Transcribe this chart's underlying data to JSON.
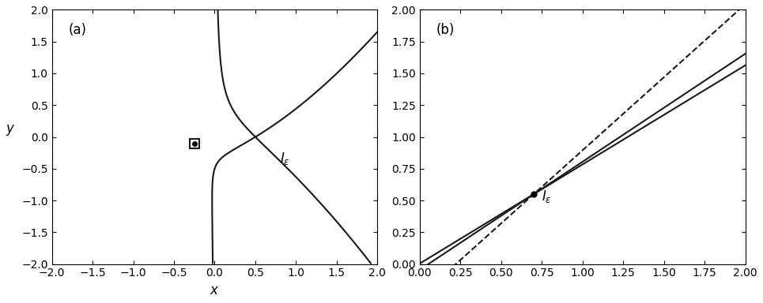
{
  "xlim_a": [
    -2,
    2
  ],
  "ylim_a": [
    -2,
    2
  ],
  "xlim_b": [
    0.0,
    2.0
  ],
  "ylim_b": [
    0.0,
    2.0
  ],
  "epsilon": 0.25,
  "alpha": 0.5,
  "bg_color": "#ffffff",
  "line_color": "#1a1a1a",
  "label_a": "(a)",
  "label_b": "(b)",
  "Ie_label": "$I_{\\varepsilon}$",
  "xlabel": "$x$",
  "ylabel": "$y$",
  "dot_color": "black",
  "dot_x_a": -0.25,
  "dot_y_a": -0.1,
  "dot_x_b": 0.7,
  "dot_y_b": 0.55
}
